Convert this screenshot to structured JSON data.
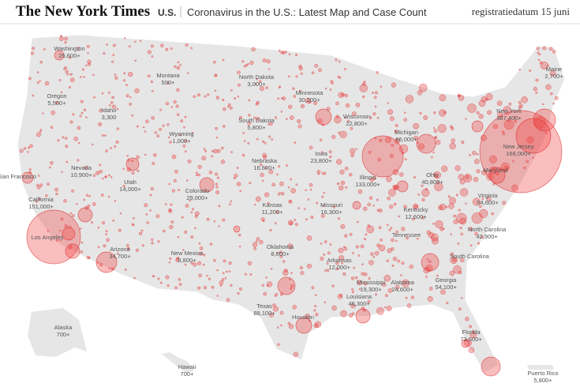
{
  "header": {
    "logo": "The New York Times",
    "section": "U.S.",
    "headline": "Coronavirus in the U.S.: Latest Map and Case Count",
    "date": "registratiedatum 15 juni"
  },
  "labels": [
    {
      "name": "Washington",
      "count": "25,600+"
    },
    {
      "name": "Oregon",
      "count": "5,500+"
    },
    {
      "name": "Idaho",
      "count": "3,300"
    },
    {
      "name": "Montana",
      "count": "500+"
    },
    {
      "name": "Wyoming",
      "count": "1,000+"
    },
    {
      "name": "North Dakota",
      "count": "3,000+"
    },
    {
      "name": "South Dakota",
      "count": "5,800+"
    },
    {
      "name": "Minnesota",
      "count": "30,200+"
    },
    {
      "name": "Wisconsin",
      "count": "22,800+"
    },
    {
      "name": "Michigan",
      "count": "66,000+"
    },
    {
      "name": "Nevada",
      "count": "10,900+"
    },
    {
      "name": "Utah",
      "count": "14,000+"
    },
    {
      "name": "Colorado",
      "count": "29,000+"
    },
    {
      "name": "Nebraska",
      "count": "16,600+"
    },
    {
      "name": "Iowa",
      "count": "23,800+"
    },
    {
      "name": "Illinois",
      "count": "133,000+"
    },
    {
      "name": "Ohio",
      "count": "40,800+"
    },
    {
      "name": "California",
      "count": "151,000+"
    },
    {
      "name": "Arizona",
      "count": "34,700+"
    },
    {
      "name": "New Mexico",
      "count": "9,800+"
    },
    {
      "name": "Kansas",
      "count": "11,200+"
    },
    {
      "name": "Missouri",
      "count": "16,300+"
    },
    {
      "name": "Kentucky",
      "count": "12,600+"
    },
    {
      "name": "Virginia",
      "count": "54,600+"
    },
    {
      "name": "New York",
      "count": "387,400+"
    },
    {
      "name": "New Jersey",
      "count": "166,000+"
    },
    {
      "name": "Maine",
      "count": "2,700+"
    },
    {
      "name": "Oklahoma",
      "count": "8,000+"
    },
    {
      "name": "Arkansas",
      "count": "12,000+"
    },
    {
      "name": "North Carolina",
      "count": "42,900+"
    },
    {
      "name": "Mississippi",
      "count": "19,300+"
    },
    {
      "name": "Alabama",
      "count": "24,600+"
    },
    {
      "name": "Georgia",
      "count": "54,100+"
    },
    {
      "name": "Louisiana",
      "count": "46,300+"
    },
    {
      "name": "Texas",
      "count": "88,100+"
    },
    {
      "name": "Florida",
      "count": "73,500+"
    },
    {
      "name": "Alaska",
      "count": "700+"
    },
    {
      "name": "Hawaii",
      "count": "700+"
    },
    {
      "name": "Puerto Rico",
      "count": "5,800+"
    }
  ],
  "places": [
    "San Francisco",
    "Los Angeles",
    "Tennessee",
    "South Carolina",
    "Maryland",
    "Houston"
  ]
}
